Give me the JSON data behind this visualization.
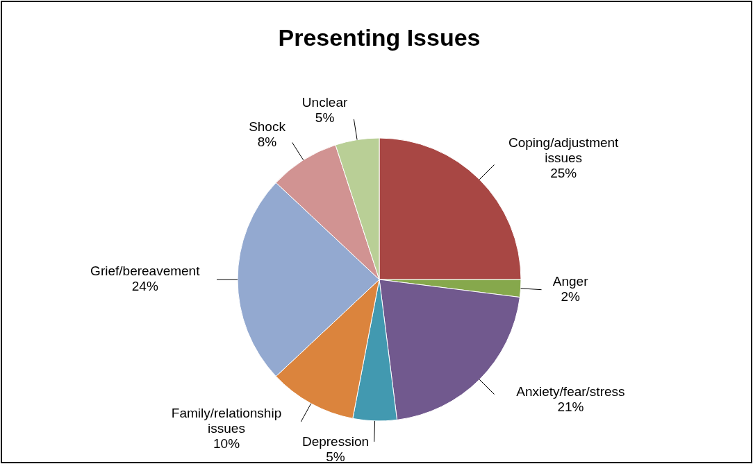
{
  "chart_data": {
    "type": "pie",
    "title": "Presenting Issues",
    "categories": [
      "Coping/adjustment issues",
      "Anger",
      "Anxiety/fear/stress",
      "Depression",
      "Family/relationship issues",
      "Grief/bereavement",
      "Shock",
      "Unclear"
    ],
    "values": [
      25,
      2,
      21,
      5,
      10,
      24,
      8,
      5
    ],
    "value_labels": [
      "25%",
      "2%",
      "21%",
      "5%",
      "10%",
      "24%",
      "8%",
      "5%"
    ],
    "colors": [
      "#a84744",
      "#86a84c",
      "#71598e",
      "#4299b0",
      "#db843d",
      "#93a9d0",
      "#d19392",
      "#b9cf96"
    ]
  }
}
